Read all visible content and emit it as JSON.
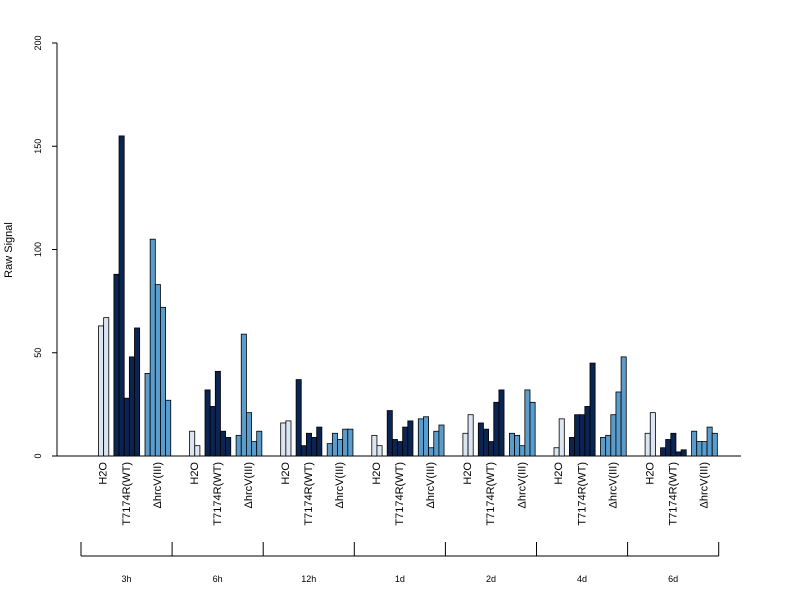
{
  "chart_data": {
    "type": "bar",
    "title": "",
    "xlabel": "",
    "ylabel": "Raw Signal",
    "ylim": [
      0,
      200
    ],
    "yticks": [
      0,
      50,
      100,
      150,
      200
    ],
    "grid": false,
    "colors": {
      "H2O": "#dce6f2",
      "T7174R(WT)": "#0c2451",
      "hrcV(III)": "#5a9ccc"
    },
    "treatments": [
      "H2O",
      "T7174R(WT)",
      "ΔhrcV(III)"
    ],
    "timepoints": [
      {
        "label": "3h",
        "groups": [
          {
            "treatment": "H2O",
            "values": [
              63,
              67
            ]
          },
          {
            "treatment": "T7174R(WT)",
            "values": [
              88,
              155,
              28,
              48,
              62
            ]
          },
          {
            "treatment": "ΔhrcV(III)",
            "values": [
              40,
              105,
              83,
              72,
              27
            ]
          }
        ]
      },
      {
        "label": "6h",
        "groups": [
          {
            "treatment": "H2O",
            "values": [
              12,
              5
            ]
          },
          {
            "treatment": "T7174R(WT)",
            "values": [
              32,
              24,
              41,
              12,
              9
            ]
          },
          {
            "treatment": "ΔhrcV(III)",
            "values": [
              10,
              59,
              21,
              7,
              12
            ]
          }
        ]
      },
      {
        "label": "12h",
        "groups": [
          {
            "treatment": "H2O",
            "values": [
              16,
              17
            ]
          },
          {
            "treatment": "T7174R(WT)",
            "values": [
              37,
              5,
              11,
              9,
              14
            ]
          },
          {
            "treatment": "ΔhrcV(III)",
            "values": [
              6,
              11,
              8,
              13,
              13
            ]
          }
        ]
      },
      {
        "label": "1d",
        "groups": [
          {
            "treatment": "H2O",
            "values": [
              10,
              5
            ]
          },
          {
            "treatment": "T7174R(WT)",
            "values": [
              22,
              8,
              7,
              14,
              17
            ]
          },
          {
            "treatment": "ΔhrcV(III)",
            "values": [
              18,
              19,
              4,
              12,
              15
            ]
          }
        ]
      },
      {
        "label": "2d",
        "groups": [
          {
            "treatment": "H2O",
            "values": [
              11,
              20
            ]
          },
          {
            "treatment": "T7174R(WT)",
            "values": [
              16,
              13,
              7,
              26,
              32
            ]
          },
          {
            "treatment": "ΔhrcV(III)",
            "values": [
              11,
              10,
              5,
              32,
              26
            ]
          }
        ]
      },
      {
        "label": "4d",
        "groups": [
          {
            "treatment": "H2O",
            "values": [
              4,
              18
            ]
          },
          {
            "treatment": "T7174R(WT)",
            "values": [
              9,
              20,
              20,
              24,
              45
            ]
          },
          {
            "treatment": "ΔhrcV(III)",
            "values": [
              9,
              10,
              20,
              31,
              48
            ]
          }
        ]
      },
      {
        "label": "6d",
        "groups": [
          {
            "treatment": "H2O",
            "values": [
              11,
              21
            ]
          },
          {
            "treatment": "T7174R(WT)",
            "values": [
              4,
              8,
              11,
              2,
              3
            ]
          },
          {
            "treatment": "ΔhrcV(III)",
            "values": [
              12,
              7,
              7,
              14,
              11
            ]
          }
        ]
      }
    ]
  }
}
